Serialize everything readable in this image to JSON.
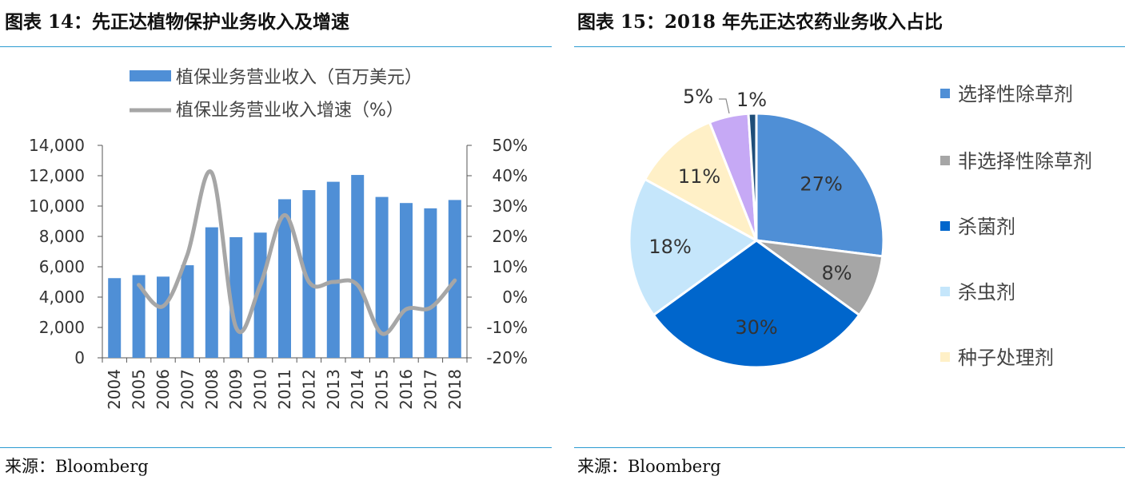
{
  "left": {
    "title": "图表 14：先正达植物保护业务收入及增速",
    "source": "来源：Bloomberg"
  },
  "right": {
    "title": "图表 15：2018 年先正达农药业务收入占比",
    "source": "来源：Bloomberg"
  },
  "chart_data": [
    {
      "type": "bar",
      "categories": [
        "2004",
        "2005",
        "2006",
        "2007",
        "2008",
        "2009",
        "2010",
        "2011",
        "2012",
        "2013",
        "2014",
        "2015",
        "2016",
        "2017",
        "2018"
      ],
      "series": [
        {
          "name": "植保业务营业收入（百万美元）",
          "type": "bar",
          "axis": "left",
          "values": [
            5250,
            5450,
            5350,
            6100,
            8600,
            7950,
            8250,
            10450,
            11050,
            11600,
            12050,
            10600,
            10200,
            9850,
            10400
          ]
        },
        {
          "name": "植保业务营业收入增速（%）",
          "type": "line",
          "axis": "right",
          "values": [
            null,
            4,
            -3,
            14,
            41,
            -10,
            4,
            27,
            5,
            5,
            4,
            -12,
            -4,
            -3.5,
            5.5
          ]
        }
      ],
      "y_ticks": [
        "0",
        "2,000",
        "4,000",
        "6,000",
        "8,000",
        "10,000",
        "12,000",
        "14,000"
      ],
      "y2_ticks": [
        "-20%",
        "-10%",
        "0%",
        "10%",
        "20%",
        "30%",
        "40%",
        "50%"
      ],
      "ylim": [
        0,
        14000
      ],
      "y2lim": [
        -20,
        50
      ],
      "bar_color": "#4f8fd6",
      "line_color": "#a6a6a6",
      "grid": false,
      "legend": "top"
    },
    {
      "type": "pie",
      "slices": [
        {
          "name": "选择性除草剂",
          "value": 27,
          "label": "27%",
          "color": "#4f8fd6"
        },
        {
          "name": "非选择性除草剂",
          "value": 8,
          "label": "8%",
          "color": "#a6a6a6"
        },
        {
          "name": "杀菌剂",
          "value": 30,
          "label": "30%",
          "color": "#0066cc"
        },
        {
          "name": "杀虫剂",
          "value": 18,
          "label": "18%",
          "color": "#c5e6fb"
        },
        {
          "name": "种子处理剂",
          "value": 11,
          "label": "11%",
          "color": "#fff0c7"
        },
        {
          "name": "",
          "value": 5,
          "label": "5%",
          "color": "#c6a9f5"
        },
        {
          "name": "",
          "value": 1,
          "label": "1%",
          "color": "#1f4e79"
        }
      ],
      "legend": "right"
    }
  ]
}
